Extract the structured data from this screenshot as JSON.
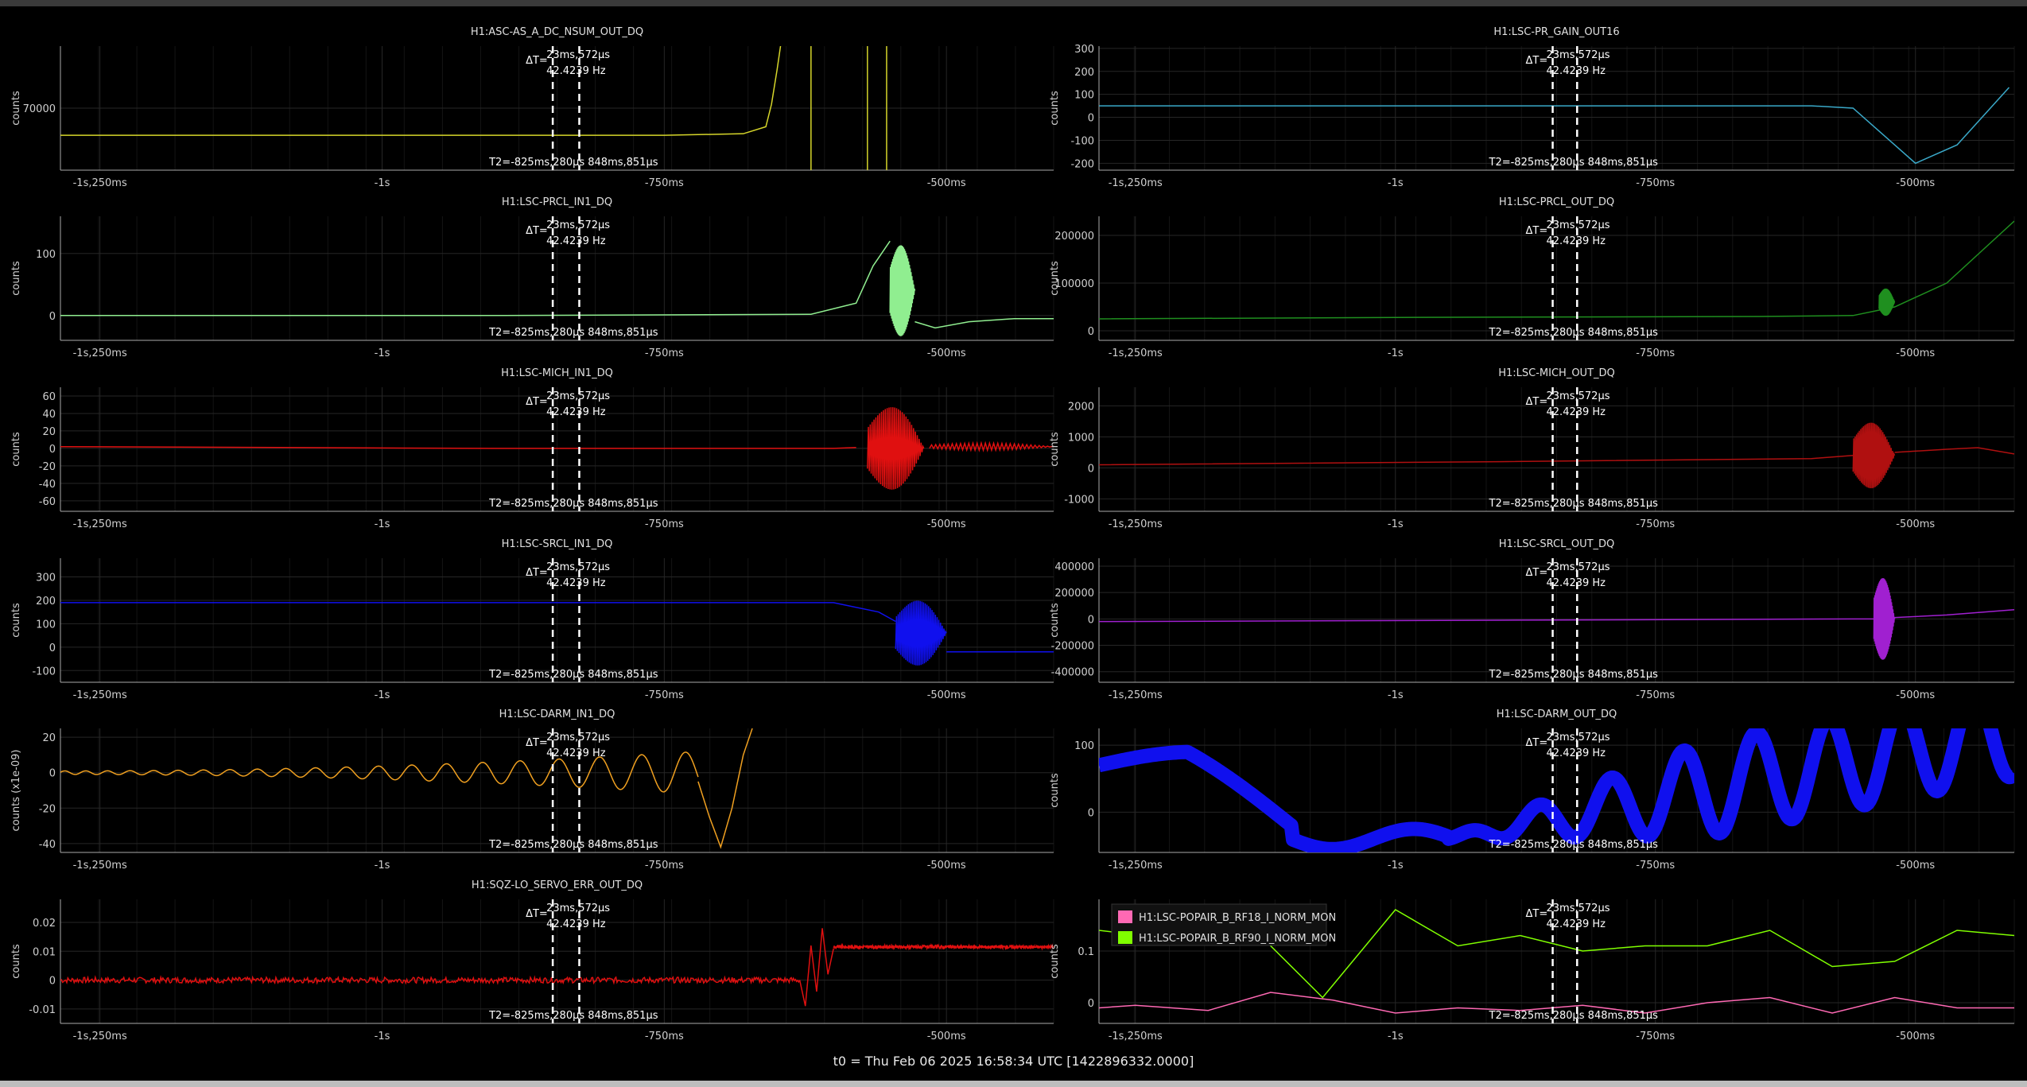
{
  "footer": "t0 = Thu Feb 06 2025 16:58:34 UTC [1422896332.0000]",
  "common": {
    "cursor_dt": "23ms,572μs",
    "cursor_freq": "42.4239 Hz",
    "cursor_dt_prefix": "ΔT=",
    "t2_label": "T2=-825ms,280μs 848ms,851μs",
    "x_ticks": [
      "-1s,250ms",
      "-1s",
      "-750ms",
      "-500ms"
    ],
    "x_tick_values": [
      -1.25,
      -1.0,
      -0.75,
      -0.5
    ],
    "xlim": [
      -1.285,
      -0.405
    ],
    "cursor1": -0.8488,
    "cursor2": -0.8253,
    "grid": true
  },
  "chart_data": [
    {
      "type": "line",
      "title": "H1:ASC-AS_A_DC_NSUM_OUT_DQ",
      "ylabel": "counts",
      "yticks": [
        70000
      ],
      "ylim": [
        62000,
        78000
      ],
      "series": [
        {
          "color": "#d6d62a",
          "kind": "line",
          "x": [
            -1.285,
            -1.0,
            -0.75,
            -0.68,
            -0.66,
            -0.655,
            -0.65,
            -0.645
          ],
          "y": [
            66500,
            66500,
            66500,
            66700,
            67600,
            70500,
            75000,
            80000
          ]
        },
        {
          "color": "#d6d62a",
          "kind": "vlines",
          "x": [
            -0.62,
            -0.57,
            -0.553
          ]
        }
      ]
    },
    {
      "type": "line",
      "title": "H1:LSC-PR_GAIN_OUT16",
      "ylabel": "counts",
      "yticks": [
        300,
        200,
        100,
        0,
        -100,
        -200
      ],
      "ylim": [
        -230,
        310
      ],
      "series": [
        {
          "color": "#3aa9c9",
          "kind": "line",
          "x": [
            -1.285,
            -0.9,
            -0.6,
            -0.56,
            -0.5,
            -0.46,
            -0.41
          ],
          "y": [
            50,
            50,
            50,
            40,
            -200,
            -120,
            130
          ]
        }
      ]
    },
    {
      "type": "line",
      "title": "H1:LSC-PRCL_IN1_DQ",
      "ylabel": "counts",
      "yticks": [
        100,
        0
      ],
      "ylim": [
        -40,
        160
      ],
      "series": [
        {
          "color": "#90ee90",
          "kind": "line",
          "x": [
            -1.285,
            -0.9,
            -0.62,
            -0.58,
            -0.565,
            -0.55
          ],
          "y": [
            0,
            0,
            2,
            20,
            80,
            120
          ]
        },
        {
          "color": "#90ee90",
          "kind": "burst",
          "x0": -0.55,
          "x1": -0.528,
          "center": 40,
          "amp": 90
        },
        {
          "color": "#90ee90",
          "kind": "line",
          "x": [
            -0.528,
            -0.51,
            -0.48,
            -0.44,
            -0.405
          ],
          "y": [
            -10,
            -20,
            -10,
            -5,
            -5
          ]
        }
      ]
    },
    {
      "type": "line",
      "title": "H1:LSC-PRCL_OUT_DQ",
      "ylabel": "counts",
      "yticks": [
        200000,
        100000,
        0
      ],
      "ylim": [
        -20000,
        240000
      ],
      "series": [
        {
          "color": "#1f8f1f",
          "kind": "line",
          "x": [
            -1.285,
            -1.0,
            -0.65,
            -0.56,
            -0.52,
            -0.47,
            -0.405
          ],
          "y": [
            25000,
            28000,
            30000,
            32000,
            50000,
            100000,
            230000
          ]
        },
        {
          "color": "#1f8f1f",
          "kind": "burst",
          "x0": -0.535,
          "x1": -0.52,
          "center": 60000,
          "amp": 35000
        }
      ]
    },
    {
      "type": "line",
      "title": "H1:LSC-MICH_IN1_DQ",
      "ylabel": "counts",
      "yticks": [
        60,
        40,
        20,
        0,
        -20,
        -40,
        -60
      ],
      "ylim": [
        -72,
        70
      ],
      "series": [
        {
          "color": "#e01010",
          "kind": "line",
          "x": [
            -1.285,
            -0.9,
            -0.6,
            -0.58
          ],
          "y": [
            2,
            0,
            0,
            1
          ]
        },
        {
          "color": "#e01010",
          "kind": "burst",
          "x0": -0.57,
          "x1": -0.52,
          "center": 0,
          "amp": 58
        },
        {
          "color": "#e01010",
          "kind": "burst",
          "x0": -0.515,
          "x1": -0.405,
          "center": 2,
          "amp": 5
        }
      ]
    },
    {
      "type": "line",
      "title": "H1:LSC-MICH_OUT_DQ",
      "ylabel": "counts",
      "yticks": [
        2000,
        1000,
        0,
        -1000
      ],
      "ylim": [
        -1400,
        2600
      ],
      "series": [
        {
          "color": "#b01010",
          "kind": "line",
          "x": [
            -1.285,
            -0.9,
            -0.6,
            -0.56
          ],
          "y": [
            100,
            200,
            300,
            400
          ]
        },
        {
          "color": "#b01010",
          "kind": "burst",
          "x0": -0.56,
          "x1": -0.52,
          "center": 400,
          "amp": 1300
        },
        {
          "color": "#b01010",
          "kind": "line",
          "x": [
            -0.52,
            -0.47,
            -0.44,
            -0.405
          ],
          "y": [
            500,
            600,
            650,
            450
          ]
        }
      ]
    },
    {
      "type": "line",
      "title": "H1:LSC-SRCL_IN1_DQ",
      "ylabel": "counts",
      "yticks": [
        300,
        200,
        100,
        0,
        -100
      ],
      "ylim": [
        -150,
        380
      ],
      "series": [
        {
          "color": "#1010ee",
          "kind": "line",
          "x": [
            -1.285,
            -0.9,
            -0.6,
            -0.56,
            -0.545
          ],
          "y": [
            190,
            190,
            190,
            150,
            110
          ]
        },
        {
          "color": "#1010ee",
          "kind": "burst",
          "x0": -0.545,
          "x1": -0.5,
          "center": 60,
          "amp": 170
        },
        {
          "color": "#1010ee",
          "kind": "line",
          "x": [
            -0.5,
            -0.45,
            -0.405
          ],
          "y": [
            -20,
            -20,
            -20
          ]
        }
      ]
    },
    {
      "type": "line",
      "title": "H1:LSC-SRCL_OUT_DQ",
      "ylabel": "counts",
      "yticks": [
        400000,
        200000,
        0,
        -200000,
        -400000
      ],
      "ylim": [
        -480000,
        460000
      ],
      "series": [
        {
          "color": "#a020d0",
          "kind": "line",
          "x": [
            -1.285,
            -0.9,
            -0.56,
            -0.54
          ],
          "y": [
            -20000,
            -10000,
            0,
            0
          ]
        },
        {
          "color": "#a020d0",
          "kind": "burst",
          "x0": -0.54,
          "x1": -0.52,
          "center": 0,
          "amp": 380000
        },
        {
          "color": "#a020d0",
          "kind": "line",
          "x": [
            -0.52,
            -0.47,
            -0.405
          ],
          "y": [
            10000,
            30000,
            70000
          ]
        }
      ]
    },
    {
      "type": "line",
      "title": "H1:LSC-DARM_IN1_DQ",
      "ylabel": "counts (x1e-09)",
      "yticks": [
        20,
        0,
        -20,
        -40
      ],
      "ylim": [
        -45,
        25
      ],
      "series": [
        {
          "color": "#f0a020",
          "kind": "osc",
          "x0": -1.285,
          "x1": -0.72,
          "center": 0,
          "amp0": 1,
          "amp1": 12,
          "period0": 0.018,
          "period1": 0.04
        },
        {
          "color": "#f0a020",
          "kind": "line",
          "x": [
            -0.72,
            -0.71,
            -0.7,
            -0.69,
            -0.68,
            -0.672
          ],
          "y": [
            -5,
            -25,
            -42,
            -20,
            10,
            25
          ]
        }
      ]
    },
    {
      "type": "line",
      "title": "H1:LSC-DARM_OUT_DQ",
      "ylabel": "counts",
      "yticks": [
        100,
        0
      ],
      "ylim": [
        -60,
        125
      ],
      "series": [
        {
          "color": "#1010ee",
          "kind": "band",
          "x0": -1.285,
          "x1": -0.405,
          "width": 18
        }
      ]
    },
    {
      "type": "line",
      "title": "H1:SQZ-LO_SERVO_ERR_OUT_DQ",
      "ylabel": "counts",
      "yticks": [
        0.02,
        0.01,
        0,
        -0.01
      ],
      "ylim": [
        -0.015,
        0.028
      ],
      "series": [
        {
          "color": "#e01010",
          "kind": "noise",
          "x0": -1.285,
          "x1": -0.63,
          "center": 0,
          "amp": 0.001
        },
        {
          "color": "#e01010",
          "kind": "line",
          "x": [
            -0.63,
            -0.625,
            -0.62,
            -0.615,
            -0.61,
            -0.605,
            -0.6
          ],
          "y": [
            0,
            -0.009,
            0.012,
            -0.004,
            0.018,
            0.002,
            0.011
          ]
        },
        {
          "color": "#e01010",
          "kind": "noise",
          "x0": -0.6,
          "x1": -0.405,
          "center": 0.0115,
          "amp": 0.0006
        }
      ]
    },
    {
      "type": "line",
      "title": "",
      "ylabel": "counts",
      "yticks": [
        0.1,
        0
      ],
      "ylim": [
        -0.04,
        0.2
      ],
      "legend": [
        {
          "name": "H1:LSC-POPAIR_B_RF18_I_NORM_MON",
          "color": "#ff69b4"
        },
        {
          "name": "H1:LSC-POPAIR_B_RF90_I_NORM_MON",
          "color": "#80ff00"
        }
      ],
      "series": [
        {
          "color": "#ff69b4",
          "kind": "line",
          "x": [
            -1.285,
            -1.25,
            -1.18,
            -1.12,
            -1.06,
            -1.0,
            -0.94,
            -0.88,
            -0.82,
            -0.76,
            -0.7,
            -0.64,
            -0.58,
            -0.52,
            -0.46,
            -0.405
          ],
          "y": [
            -0.01,
            -0.005,
            -0.015,
            0.02,
            0.005,
            -0.02,
            -0.01,
            -0.015,
            -0.005,
            -0.02,
            0,
            0.01,
            -0.02,
            0.01,
            -0.01,
            -0.01
          ]
        },
        {
          "color": "#80ff00",
          "kind": "line",
          "x": [
            -1.285,
            -1.2,
            -1.14,
            -1.07,
            -1.0,
            -0.94,
            -0.88,
            -0.82,
            -0.76,
            -0.7,
            -0.64,
            -0.58,
            -0.52,
            -0.46,
            -0.405
          ],
          "y": [
            0.14,
            0.12,
            0.15,
            0.01,
            0.18,
            0.11,
            0.13,
            0.1,
            0.11,
            0.11,
            0.14,
            0.07,
            0.08,
            0.14,
            0.13
          ]
        }
      ]
    }
  ]
}
